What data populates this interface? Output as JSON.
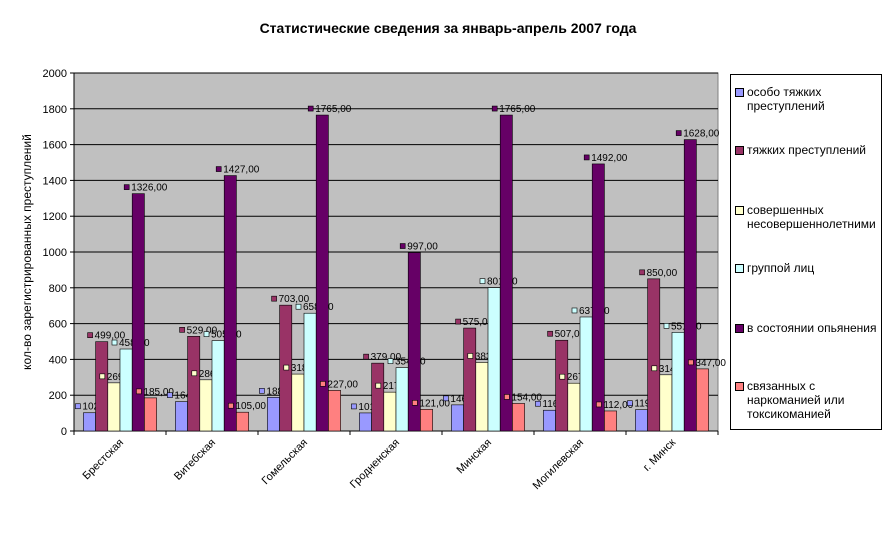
{
  "chart_data": {
    "type": "bar",
    "title": "Статистические сведения за январь-апрель 2007 года",
    "ylabel": "кол-во зарегистрированных преступлений",
    "xlabel": "",
    "ylim": [
      0,
      2000
    ],
    "yticks": [
      "0",
      "200",
      "400",
      "600",
      "800",
      "1000",
      "1200",
      "1400",
      "1600",
      "1800",
      "2000"
    ],
    "categories": [
      "Брестская",
      "Витебская",
      "Гомельская",
      "Гродненская",
      "Минская",
      "Могилевская",
      "г. Минск"
    ],
    "series": [
      {
        "name": "особо тяжких преступлений",
        "color": "#9999ff",
        "values": [
          102,
          164,
          188,
          101,
          146,
          116,
          119
        ],
        "labels": [
          "102,00",
          "164,00",
          "188,00",
          "101,00",
          "146,00",
          "116,00",
          "119,00"
        ]
      },
      {
        "name": "тяжких преступлений",
        "color": "#993366",
        "values": [
          499,
          529,
          703,
          379,
          575,
          507,
          850
        ],
        "labels": [
          "499,00",
          "529,00",
          "703,00",
          "379,00",
          "575,00",
          "507,00",
          "850,00"
        ]
      },
      {
        "name": "совершенных несовершеннолетними",
        "color": "#ffffcc",
        "values": [
          269,
          286,
          318,
          217,
          383,
          267,
          314
        ],
        "labels": [
          "269,00",
          "286,00",
          "318,00",
          "217,00",
          "383,00",
          "267,00",
          "314,00"
        ]
      },
      {
        "name": "группой лиц",
        "color": "#ccffff",
        "values": [
          458,
          505,
          658,
          354,
          801,
          637,
          551
        ],
        "labels": [
          "458,00",
          "505,00",
          "658,00",
          "354,00",
          "801,00",
          "637,00",
          "551,00"
        ]
      },
      {
        "name": "в состоянии опьянения",
        "color": "#660066",
        "values": [
          1326,
          1427,
          1765,
          997,
          1765,
          1492,
          1628
        ],
        "labels": [
          "1326,00",
          "1427,00",
          "1765,00",
          "997,00",
          "1765,00",
          "1492,00",
          "1628,00"
        ]
      },
      {
        "name": "связанных с наркоманией или токсикоманией",
        "color": "#ff8080",
        "values": [
          185,
          105,
          227,
          121,
          154,
          112,
          347
        ],
        "labels": [
          "185,00",
          "105,00",
          "227,00",
          "121,00",
          "154,00",
          "112,00",
          "347,00"
        ]
      }
    ],
    "legend_placement": "right",
    "grid": true,
    "plot_background": "#c0c0c0"
  }
}
